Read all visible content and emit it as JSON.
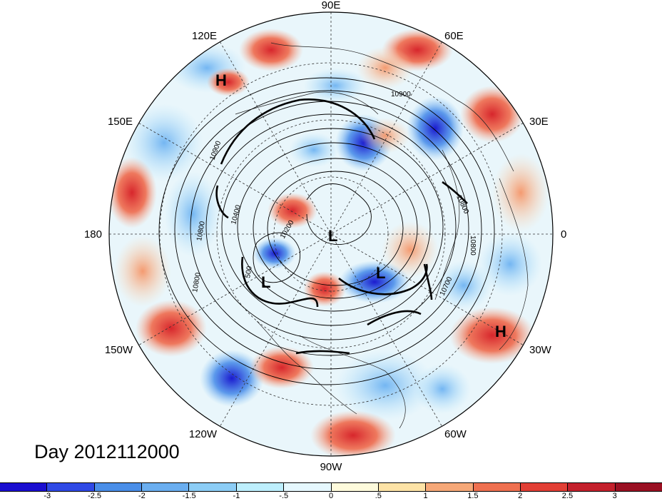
{
  "title": "Day 2012112000",
  "longitude_labels": {
    "north": "90E",
    "ne": "60E",
    "ene": "30E",
    "east": "0",
    "ese": "30W",
    "se": "60W",
    "south": "90W",
    "sw": "120W",
    "wsw": "150W",
    "west": "180",
    "wnw": "150E",
    "nw": "120E"
  },
  "contour_labels": [
    "10900",
    "10900",
    "10800",
    "10400",
    "10200",
    "10800",
    "10800",
    "500",
    "10800",
    "10700"
  ],
  "pressure_centers": [
    {
      "label": "H",
      "lon_note": "near 120E"
    },
    {
      "label": "L",
      "lon_note": "pole"
    },
    {
      "label": "L",
      "lon_note": "near 130W"
    },
    {
      "label": "L",
      "lon_note": "near 45W"
    },
    {
      "label": "H",
      "lon_note": "near 30W"
    }
  ],
  "colorbar": {
    "tick_labels": [
      "-3",
      "-2.5",
      "-2",
      "-1.5",
      "-1",
      "-.5",
      "0",
      ".5",
      "1",
      "1.5",
      "2",
      "2.5",
      "3"
    ],
    "colors": [
      "#1a0ed0",
      "#2f49e6",
      "#4a8ee8",
      "#6aaef0",
      "#8ccdf6",
      "#bdeffd",
      "#e6f8fe",
      "#fefbdc",
      "#fde3a6",
      "#f6a878",
      "#ef7050",
      "#e23f35",
      "#c4202c",
      "#9a1022"
    ]
  }
}
